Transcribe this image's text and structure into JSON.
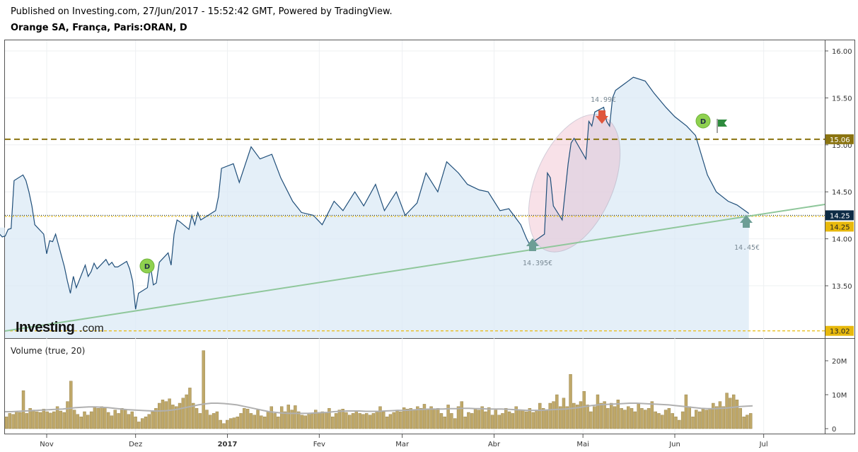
{
  "header": {
    "published": "Published on Investing.com, 27/Jun/2017 - 15:52:42 GMT, Powered by TradingView.",
    "symbol": "Orange SA, França, Paris:ORAN, D"
  },
  "logo": {
    "brand": "Investing",
    "suffix": ".com"
  },
  "colors": {
    "price_line": "#1f4e79",
    "price_fill": "#dbe9f6",
    "trendline": "#8fc79b",
    "resistance": "#8b7411",
    "last_price": "#0d2b45",
    "low_line": "#e8b90d",
    "volume_bar": "#bfa869",
    "volume_ma": "#b0b0b0",
    "marker_d": "#8fd14f",
    "arrow_up": "#6d9e95",
    "arrow_down": "#e0563c",
    "flag": "#2e8b3e"
  },
  "chart_data": [
    {
      "type": "line",
      "title": "Orange SA, França, Paris:ORAN, D",
      "xlabel": "",
      "ylabel": "",
      "x_tick_labels": [
        "Nov",
        "Dez",
        "2017",
        "Fev",
        "Mar",
        "Abr",
        "Mai",
        "Jun",
        "Jul"
      ],
      "y_tick_labels": [
        "13.50",
        "14.00",
        "14.50",
        "15.00",
        "15.50",
        "16.00"
      ],
      "ylim": [
        13.0,
        16.05
      ],
      "grid": true,
      "series": [
        {
          "name": "",
          "x": [
            "2016-10-14",
            "2016-10-17",
            "2016-10-18",
            "2016-10-19",
            "2016-10-20",
            "2016-10-21",
            "2016-10-24",
            "2016-10-25",
            "2016-10-26",
            "2016-10-27",
            "2016-10-28",
            "2016-10-31",
            "2016-11-01",
            "2016-11-02",
            "2016-11-03",
            "2016-11-04",
            "2016-11-07",
            "2016-11-08",
            "2016-11-09",
            "2016-11-10",
            "2016-11-11",
            "2016-11-14",
            "2016-11-15",
            "2016-11-16",
            "2016-11-17",
            "2016-11-18",
            "2016-11-21",
            "2016-11-22",
            "2016-11-23",
            "2016-11-24",
            "2016-11-25",
            "2016-11-28",
            "2016-11-29",
            "2016-11-30",
            "2016-12-01",
            "2016-12-02",
            "2016-12-05",
            "2016-12-06",
            "2016-12-07",
            "2016-12-08",
            "2016-12-09",
            "2016-12-12",
            "2016-12-13",
            "2016-12-14",
            "2016-12-15",
            "2016-12-16",
            "2016-12-19",
            "2016-12-20",
            "2016-12-21",
            "2016-12-22",
            "2016-12-23",
            "2016-12-27",
            "2016-12-28",
            "2016-12-29",
            "2016-12-30",
            "2017-01-03",
            "2017-01-05",
            "2017-01-09",
            "2017-01-12",
            "2017-01-16",
            "2017-01-19",
            "2017-01-23",
            "2017-01-26",
            "2017-01-30",
            "2017-02-02",
            "2017-02-06",
            "2017-02-09",
            "2017-02-13",
            "2017-02-16",
            "2017-02-20",
            "2017-02-23",
            "2017-02-27",
            "2017-03-02",
            "2017-03-06",
            "2017-03-09",
            "2017-03-13",
            "2017-03-16",
            "2017-03-20",
            "2017-03-23",
            "2017-03-27",
            "2017-03-30",
            "2017-04-03",
            "2017-04-06",
            "2017-04-10",
            "2017-04-12",
            "2017-04-13",
            "2017-04-18",
            "2017-04-19",
            "2017-04-20",
            "2017-04-21",
            "2017-04-24",
            "2017-04-25",
            "2017-04-26",
            "2017-04-27",
            "2017-04-28",
            "2017-05-02",
            "2017-05-03",
            "2017-05-04",
            "2017-05-05",
            "2017-05-08",
            "2017-05-09",
            "2017-05-10",
            "2017-05-11",
            "2017-05-12",
            "2017-05-15",
            "2017-05-18",
            "2017-05-22",
            "2017-05-25",
            "2017-05-29",
            "2017-06-01",
            "2017-06-05",
            "2017-06-08",
            "2017-06-12",
            "2017-06-15",
            "2017-06-19",
            "2017-06-22",
            "2017-06-26"
          ],
          "y": [
            14.12,
            14.02,
            14.03,
            14.1,
            14.11,
            14.62,
            14.68,
            14.62,
            14.5,
            14.35,
            14.15,
            14.05,
            13.84,
            13.98,
            13.97,
            14.05,
            13.7,
            13.55,
            13.42,
            13.6,
            13.48,
            13.72,
            13.6,
            13.65,
            13.74,
            13.68,
            13.78,
            13.72,
            13.75,
            13.7,
            13.7,
            13.76,
            13.68,
            13.55,
            13.25,
            13.42,
            13.48,
            13.72,
            13.51,
            13.53,
            13.75,
            13.85,
            13.72,
            14.05,
            14.2,
            14.18,
            14.1,
            14.25,
            14.15,
            14.28,
            14.2,
            14.28,
            14.3,
            14.45,
            14.75,
            14.8,
            14.6,
            14.98,
            14.85,
            14.9,
            14.65,
            14.4,
            14.28,
            14.25,
            14.15,
            14.4,
            14.3,
            14.5,
            14.35,
            14.58,
            14.3,
            14.5,
            14.25,
            14.38,
            14.7,
            14.5,
            14.82,
            14.7,
            14.58,
            14.52,
            14.5,
            14.3,
            14.32,
            14.15,
            14.0,
            13.94,
            14.05,
            14.7,
            14.65,
            14.35,
            14.2,
            14.5,
            14.8,
            15.02,
            15.07,
            14.85,
            15.25,
            15.2,
            15.35,
            15.4,
            15.25,
            15.2,
            15.5,
            15.58,
            15.65,
            15.72,
            15.68,
            15.55,
            15.4,
            15.3,
            15.2,
            15.1,
            14.68,
            14.5,
            14.4,
            14.36,
            14.27
          ]
        }
      ],
      "horizontal_lines": [
        {
          "label": "15.06",
          "value": 15.06
        },
        {
          "label": "14.25",
          "value": 14.25
        },
        {
          "label": "14.25",
          "value": 14.25
        },
        {
          "label": "13.02",
          "value": 13.02
        }
      ],
      "annotations": [
        "14.99€",
        "14.395€",
        "14.45€",
        "D",
        "D"
      ]
    },
    {
      "type": "bar",
      "title": "Volume (true, 20)",
      "y_tick_labels": [
        "0",
        "10M",
        "20M"
      ],
      "ylim": [
        0,
        24
      ],
      "values": [
        3.5,
        4.5,
        4.2,
        5.0,
        4.8,
        11.2,
        4.5,
        6.0,
        5.5,
        5.0,
        4.8,
        5.8,
        5.0,
        4.6,
        5.0,
        6.5,
        5.2,
        4.8,
        8.0,
        14.0,
        5.5,
        4.2,
        3.5,
        5.0,
        4.0,
        5.0,
        6.5,
        6.0,
        6.5,
        6.2,
        4.8,
        3.8,
        5.5,
        4.5,
        6.0,
        5.8,
        4.2,
        5.0,
        3.5,
        2.0,
        3.0,
        3.5,
        4.2,
        5.0,
        6.0,
        7.5,
        8.5,
        8.0,
        8.8,
        7.0,
        6.5,
        7.5,
        9.0,
        10.0,
        12.0,
        7.5,
        6.0,
        4.5,
        23.0,
        5.5,
        4.0,
        4.5,
        5.0,
        2.5,
        1.5,
        2.5,
        3.0,
        3.2,
        3.5,
        4.5,
        6.0,
        5.8,
        4.5,
        4.0,
        5.5,
        3.8,
        3.5,
        5.0,
        6.5,
        4.5,
        3.5,
        6.5,
        5.0,
        7.0,
        5.5,
        6.8,
        5.0,
        4.0,
        3.8,
        4.2,
        4.5,
        5.5,
        4.8,
        5.0,
        4.8,
        6.0,
        3.5,
        4.5,
        5.5,
        5.8,
        4.8,
        4.0,
        4.5,
        5.2,
        4.5,
        4.2,
        4.5,
        4.0,
        4.5,
        5.2,
        6.5,
        5.0,
        3.5,
        4.2,
        4.8,
        5.5,
        5.0,
        6.2,
        5.8,
        6.0,
        5.5,
        6.5,
        6.0,
        7.2,
        5.8,
        6.5,
        5.8,
        6.0,
        4.5,
        3.5,
        7.0,
        4.5,
        3.0,
        6.5,
        8.0,
        3.5,
        4.8,
        4.5,
        6.0,
        5.5,
        6.5,
        5.0,
        6.2,
        4.0,
        5.5,
        4.0,
        4.5,
        6.0,
        5.0,
        4.5,
        6.5,
        5.5,
        5.5,
        5.0,
        6.0,
        4.8,
        5.5,
        7.5,
        6.0,
        5.5,
        7.5,
        8.0,
        10.0,
        6.5,
        9.0,
        6.5,
        16.0,
        7.5,
        7.0,
        8.0,
        11.0,
        7.0,
        5.0,
        6.5,
        10.0,
        7.5,
        8.0,
        6.0,
        7.5,
        6.5,
        8.5,
        6.0,
        5.5,
        6.5,
        6.0,
        5.0,
        7.5,
        6.0,
        5.5,
        6.0,
        8.0,
        5.0,
        4.5,
        4.0,
        5.5,
        6.0,
        4.5,
        3.5,
        2.5,
        5.0,
        10.0,
        6.5,
        3.5,
        5.5,
        5.0,
        6.0,
        5.5,
        6.0,
        7.5,
        6.5,
        8.0,
        6.5,
        10.5,
        9.0,
        10.0,
        8.5,
        6.0,
        3.5,
        4.0,
        4.5
      ],
      "ma": [
        5.0,
        5.0,
        5.1,
        5.2,
        5.3,
        5.4,
        5.5,
        5.6,
        5.7,
        5.8,
        6.0,
        6.2,
        6.3,
        6.4,
        6.4,
        6.3,
        6.2,
        6.0,
        5.8,
        5.6,
        5.5,
        5.4,
        5.3,
        5.2,
        5.2,
        5.3,
        5.5,
        5.8,
        6.2,
        6.6,
        7.0,
        7.3,
        7.5,
        7.5,
        7.4,
        7.2,
        7.0,
        6.6,
        6.2,
        5.8,
        5.4,
        5.0,
        4.8,
        4.6,
        4.5,
        4.5,
        4.5,
        4.5,
        4.6,
        4.7,
        4.8,
        5.0,
        5.1,
        5.2,
        5.2,
        5.2,
        5.1,
        5.1,
        5.1,
        5.2,
        5.3,
        5.4,
        5.4,
        5.5,
        5.6,
        5.7,
        5.8,
        5.8,
        5.8,
        5.9,
        5.9,
        6.0,
        6.0,
        5.9,
        5.9,
        5.8,
        5.8,
        5.8,
        5.7,
        5.6,
        5.5,
        5.4,
        5.4,
        5.4,
        5.5,
        5.6,
        5.7,
        5.8,
        6.0,
        6.2,
        6.5,
        6.8,
        7.0,
        7.1,
        7.2,
        7.3,
        7.4,
        7.5,
        7.5,
        7.4,
        7.3,
        7.2,
        7.1,
        7.0,
        6.8,
        6.6,
        6.4,
        6.2,
        6.0,
        5.9,
        5.9,
        6.0,
        6.1,
        6.3,
        6.5,
        6.6,
        6.7
      ]
    }
  ]
}
